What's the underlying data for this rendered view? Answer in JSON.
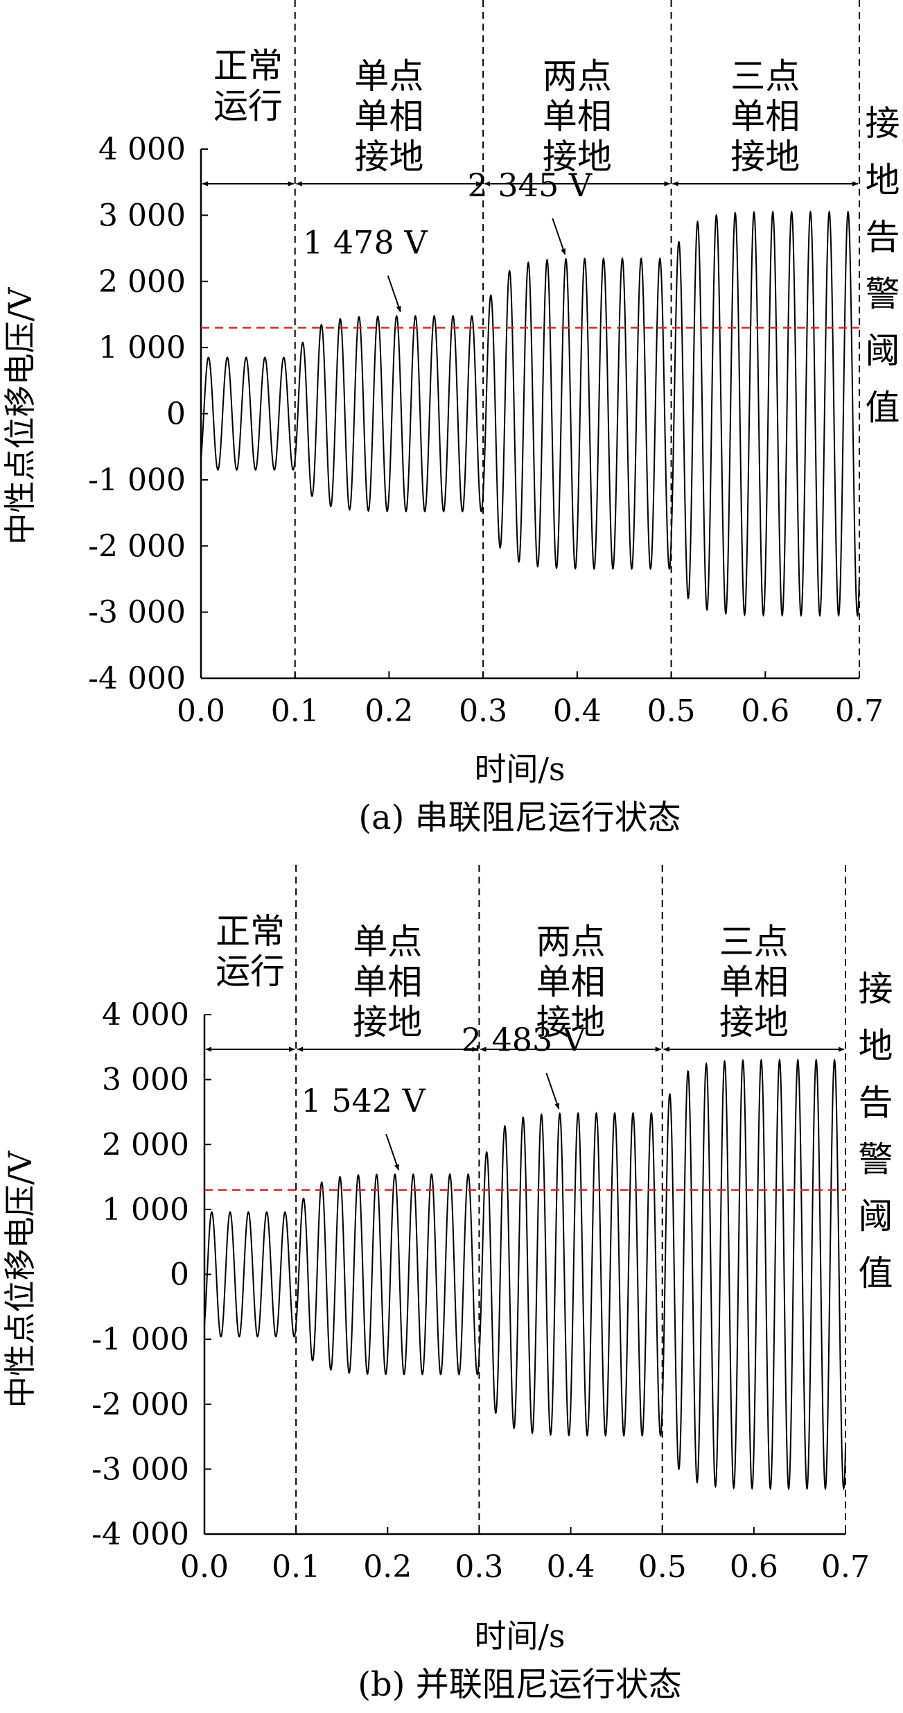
{
  "colors": {
    "signal": "#000000",
    "threshold": "#d9292b",
    "axes": "#000000"
  },
  "chart_data": [
    {
      "type": "line",
      "caption": "(a) 串联阻尼运行状态",
      "xlabel": "时间/s",
      "ylabel": "中性点位移电压/V",
      "xlim": [
        0.0,
        0.7
      ],
      "ylim": [
        -4000,
        4000
      ],
      "xticks": [
        "0.0",
        "0.1",
        "0.2",
        "0.3",
        "0.4",
        "0.5",
        "0.6",
        "0.7"
      ],
      "yticks": [
        "4 000",
        "3 000",
        "2 000",
        "1 000",
        "0",
        "-1 000",
        "-2 000",
        "-3 000",
        "-4 000"
      ],
      "frequency_hz": 50,
      "threshold": 1300,
      "threshold_label": [
        "接",
        "地",
        "告",
        "警",
        "阈",
        "值"
      ],
      "boundaries": [
        0.1,
        0.3,
        0.5,
        0.7
      ],
      "regions": [
        {
          "x0": 0.0,
          "x1": 0.1,
          "lines": [
            "正常",
            "运行"
          ],
          "amplitude": 850
        },
        {
          "x0": 0.1,
          "x1": 0.3,
          "lines": [
            "单点",
            "单相",
            "接地"
          ],
          "amplitude": 1478
        },
        {
          "x0": 0.3,
          "x1": 0.5,
          "lines": [
            "两点",
            "单相",
            "接地"
          ],
          "amplitude": 2345
        },
        {
          "x0": 0.5,
          "x1": 0.7,
          "lines": [
            "三点",
            "单相",
            "接地"
          ],
          "amplitude": 3050
        }
      ],
      "annotations": [
        {
          "text": "1 478 V",
          "x": 0.215,
          "y": 1478
        },
        {
          "text": "2 345 V",
          "x": 0.39,
          "y": 2345
        }
      ]
    },
    {
      "type": "line",
      "caption": "(b) 并联阻尼运行状态",
      "xlabel": "时间/s",
      "ylabel": "中性点位移电压/V",
      "xlim": [
        0.0,
        0.7
      ],
      "ylim": [
        -4000,
        4000
      ],
      "xticks": [
        "0.0",
        "0.1",
        "0.2",
        "0.3",
        "0.4",
        "0.5",
        "0.6",
        "0.7"
      ],
      "yticks": [
        "4 000",
        "3 000",
        "2 000",
        "1 000",
        "0",
        "-1 000",
        "-2 000",
        "-3 000",
        "-4 000"
      ],
      "frequency_hz": 50,
      "threshold": 1300,
      "threshold_label": [
        "接",
        "地",
        "告",
        "警",
        "阈",
        "值"
      ],
      "boundaries": [
        0.1,
        0.3,
        0.5,
        0.7
      ],
      "regions": [
        {
          "x0": 0.0,
          "x1": 0.1,
          "lines": [
            "正常",
            "运行"
          ],
          "amplitude": 960
        },
        {
          "x0": 0.1,
          "x1": 0.3,
          "lines": [
            "单点",
            "单相",
            "接地"
          ],
          "amplitude": 1542
        },
        {
          "x0": 0.3,
          "x1": 0.5,
          "lines": [
            "两点",
            "单相",
            "接地"
          ],
          "amplitude": 2483
        },
        {
          "x0": 0.5,
          "x1": 0.7,
          "lines": [
            "三点",
            "单相",
            "接地"
          ],
          "amplitude": 3300
        }
      ],
      "annotations": [
        {
          "text": "1 542 V",
          "x": 0.215,
          "y": 1542
        },
        {
          "text": "2 483 V",
          "x": 0.39,
          "y": 2483
        }
      ]
    }
  ]
}
